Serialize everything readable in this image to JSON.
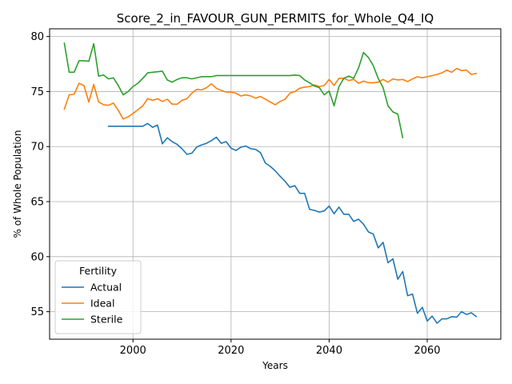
{
  "chart_data": {
    "type": "line",
    "title": "Score_2_in_FAVOUR_GUN_PERMITS_for_Whole_Q4_IQ",
    "xlabel": "Years",
    "ylabel": "% of Whole Population",
    "xlim": [
      1983,
      2075
    ],
    "ylim": [
      52.5,
      80.7
    ],
    "xticks": [
      2000,
      2020,
      2040,
      2060
    ],
    "yticks": [
      55,
      60,
      65,
      70,
      75,
      80
    ],
    "grid": true,
    "legend": {
      "title": "Fertility",
      "placement": "lower-left"
    },
    "series": [
      {
        "name": "Actual",
        "color": "#1f77b4",
        "x": [
          1995,
          1996,
          1997,
          1998,
          1999,
          2000,
          2001,
          2002,
          2003,
          2004,
          2005,
          2006,
          2007,
          2008,
          2009,
          2010,
          2011,
          2012,
          2013,
          2014,
          2015,
          2016,
          2017,
          2018,
          2019,
          2020,
          2021,
          2022,
          2023,
          2024,
          2025,
          2026,
          2027,
          2028,
          2029,
          2030,
          2031,
          2032,
          2033,
          2034,
          2035,
          2036,
          2037,
          2038,
          2039,
          2040,
          2041,
          2042,
          2043,
          2044,
          2045,
          2046,
          2047,
          2048,
          2049,
          2050,
          2051,
          2052,
          2053,
          2054,
          2055,
          2056,
          2057,
          2058,
          2059,
          2060,
          2061,
          2062,
          2063,
          2064,
          2065,
          2066,
          2067,
          2068,
          2069,
          2070
        ],
        "y": [
          71.85,
          71.85,
          71.85,
          71.85,
          71.85,
          71.85,
          71.85,
          71.85,
          72.1,
          71.75,
          71.95,
          70.25,
          70.8,
          70.45,
          70.2,
          69.8,
          69.3,
          69.4,
          69.95,
          70.15,
          70.3,
          70.55,
          70.85,
          70.3,
          70.45,
          69.85,
          69.65,
          69.95,
          70.05,
          69.8,
          69.75,
          69.45,
          68.5,
          68.2,
          67.8,
          67.3,
          66.85,
          66.3,
          66.45,
          65.75,
          65.75,
          64.3,
          64.2,
          64.05,
          64.15,
          64.6,
          63.9,
          64.5,
          63.85,
          63.85,
          63.2,
          63.4,
          62.95,
          62.25,
          62.05,
          60.8,
          61.3,
          59.45,
          59.8,
          57.95,
          58.65,
          56.45,
          56.6,
          54.85,
          55.4,
          54.15,
          54.6,
          53.95,
          54.35,
          54.35,
          54.55,
          54.5,
          55.0,
          54.75,
          54.9,
          54.55
        ]
      },
      {
        "name": "Ideal",
        "color": "#ff7f0e",
        "x": [
          1986,
          1987,
          1988,
          1989,
          1990,
          1991,
          1992,
          1993,
          1994,
          1995,
          1996,
          1997,
          1998,
          1999,
          2000,
          2001,
          2002,
          2003,
          2004,
          2005,
          2006,
          2007,
          2008,
          2009,
          2010,
          2011,
          2012,
          2013,
          2014,
          2015,
          2016,
          2017,
          2018,
          2019,
          2020,
          2021,
          2022,
          2023,
          2024,
          2025,
          2026,
          2027,
          2028,
          2029,
          2030,
          2031,
          2032,
          2033,
          2034,
          2035,
          2036,
          2037,
          2038,
          2039,
          2040,
          2041,
          2042,
          2043,
          2044,
          2045,
          2046,
          2047,
          2048,
          2049,
          2050,
          2051,
          2052,
          2053,
          2054,
          2055,
          2056,
          2057,
          2058,
          2059,
          2060,
          2061,
          2062,
          2063,
          2064,
          2065,
          2066,
          2067,
          2068,
          2069,
          2070
        ],
        "y": [
          73.4,
          74.7,
          74.75,
          75.75,
          75.55,
          74.05,
          75.65,
          74.05,
          73.8,
          73.75,
          73.95,
          73.3,
          72.5,
          72.7,
          73.0,
          73.35,
          73.7,
          74.35,
          74.2,
          74.35,
          74.1,
          74.3,
          73.85,
          73.85,
          74.2,
          74.35,
          74.85,
          75.2,
          75.15,
          75.35,
          75.7,
          75.3,
          75.1,
          74.95,
          74.95,
          74.85,
          74.6,
          74.7,
          74.6,
          74.4,
          74.55,
          74.3,
          74.05,
          73.8,
          74.1,
          74.3,
          74.85,
          75.0,
          75.3,
          75.4,
          75.45,
          75.6,
          75.45,
          75.55,
          76.1,
          75.55,
          76.2,
          76.2,
          76.0,
          76.1,
          75.75,
          75.95,
          75.8,
          75.8,
          75.85,
          76.1,
          75.85,
          76.15,
          76.05,
          76.1,
          75.9,
          76.15,
          76.35,
          76.25,
          76.35,
          76.45,
          76.55,
          76.7,
          76.95,
          76.75,
          77.1,
          76.9,
          76.95,
          76.55,
          76.65
        ]
      },
      {
        "name": "Sterile",
        "color": "#2ca02c",
        "x": [
          1986,
          1987,
          1988,
          1989,
          1990,
          1991,
          1992,
          1993,
          1994,
          1995,
          1996,
          1997,
          1998,
          1999,
          2000,
          2001,
          2002,
          2003,
          2004,
          2005,
          2006,
          2007,
          2008,
          2009,
          2010,
          2011,
          2012,
          2013,
          2014,
          2015,
          2016,
          2017,
          2018,
          2019,
          2020,
          2021,
          2022,
          2023,
          2024,
          2025,
          2026,
          2027,
          2028,
          2029,
          2030,
          2031,
          2032,
          2033,
          2034,
          2035,
          2036,
          2037,
          2038,
          2039,
          2040,
          2041,
          2042,
          2043,
          2044,
          2045,
          2046,
          2047,
          2048,
          2049,
          2050,
          2051,
          2052,
          2053,
          2054,
          2055
        ],
        "y": [
          79.4,
          76.75,
          76.75,
          77.8,
          77.8,
          77.75,
          79.35,
          76.4,
          76.5,
          76.15,
          76.25,
          75.55,
          74.7,
          75.0,
          75.45,
          75.75,
          76.2,
          76.7,
          76.75,
          76.8,
          76.85,
          76.05,
          75.85,
          76.1,
          76.25,
          76.25,
          76.15,
          76.25,
          76.35,
          76.35,
          76.35,
          76.45,
          76.45,
          76.45,
          76.45,
          76.45,
          76.45,
          76.45,
          76.45,
          76.45,
          76.45,
          76.45,
          76.45,
          76.45,
          76.45,
          76.45,
          76.45,
          76.5,
          76.45,
          76.05,
          75.8,
          75.5,
          75.35,
          74.7,
          75.05,
          73.7,
          75.45,
          76.2,
          76.4,
          76.2,
          77.15,
          78.55,
          78.1,
          77.35,
          76.2,
          75.35,
          73.7,
          73.15,
          72.95,
          70.8
        ]
      }
    ]
  }
}
